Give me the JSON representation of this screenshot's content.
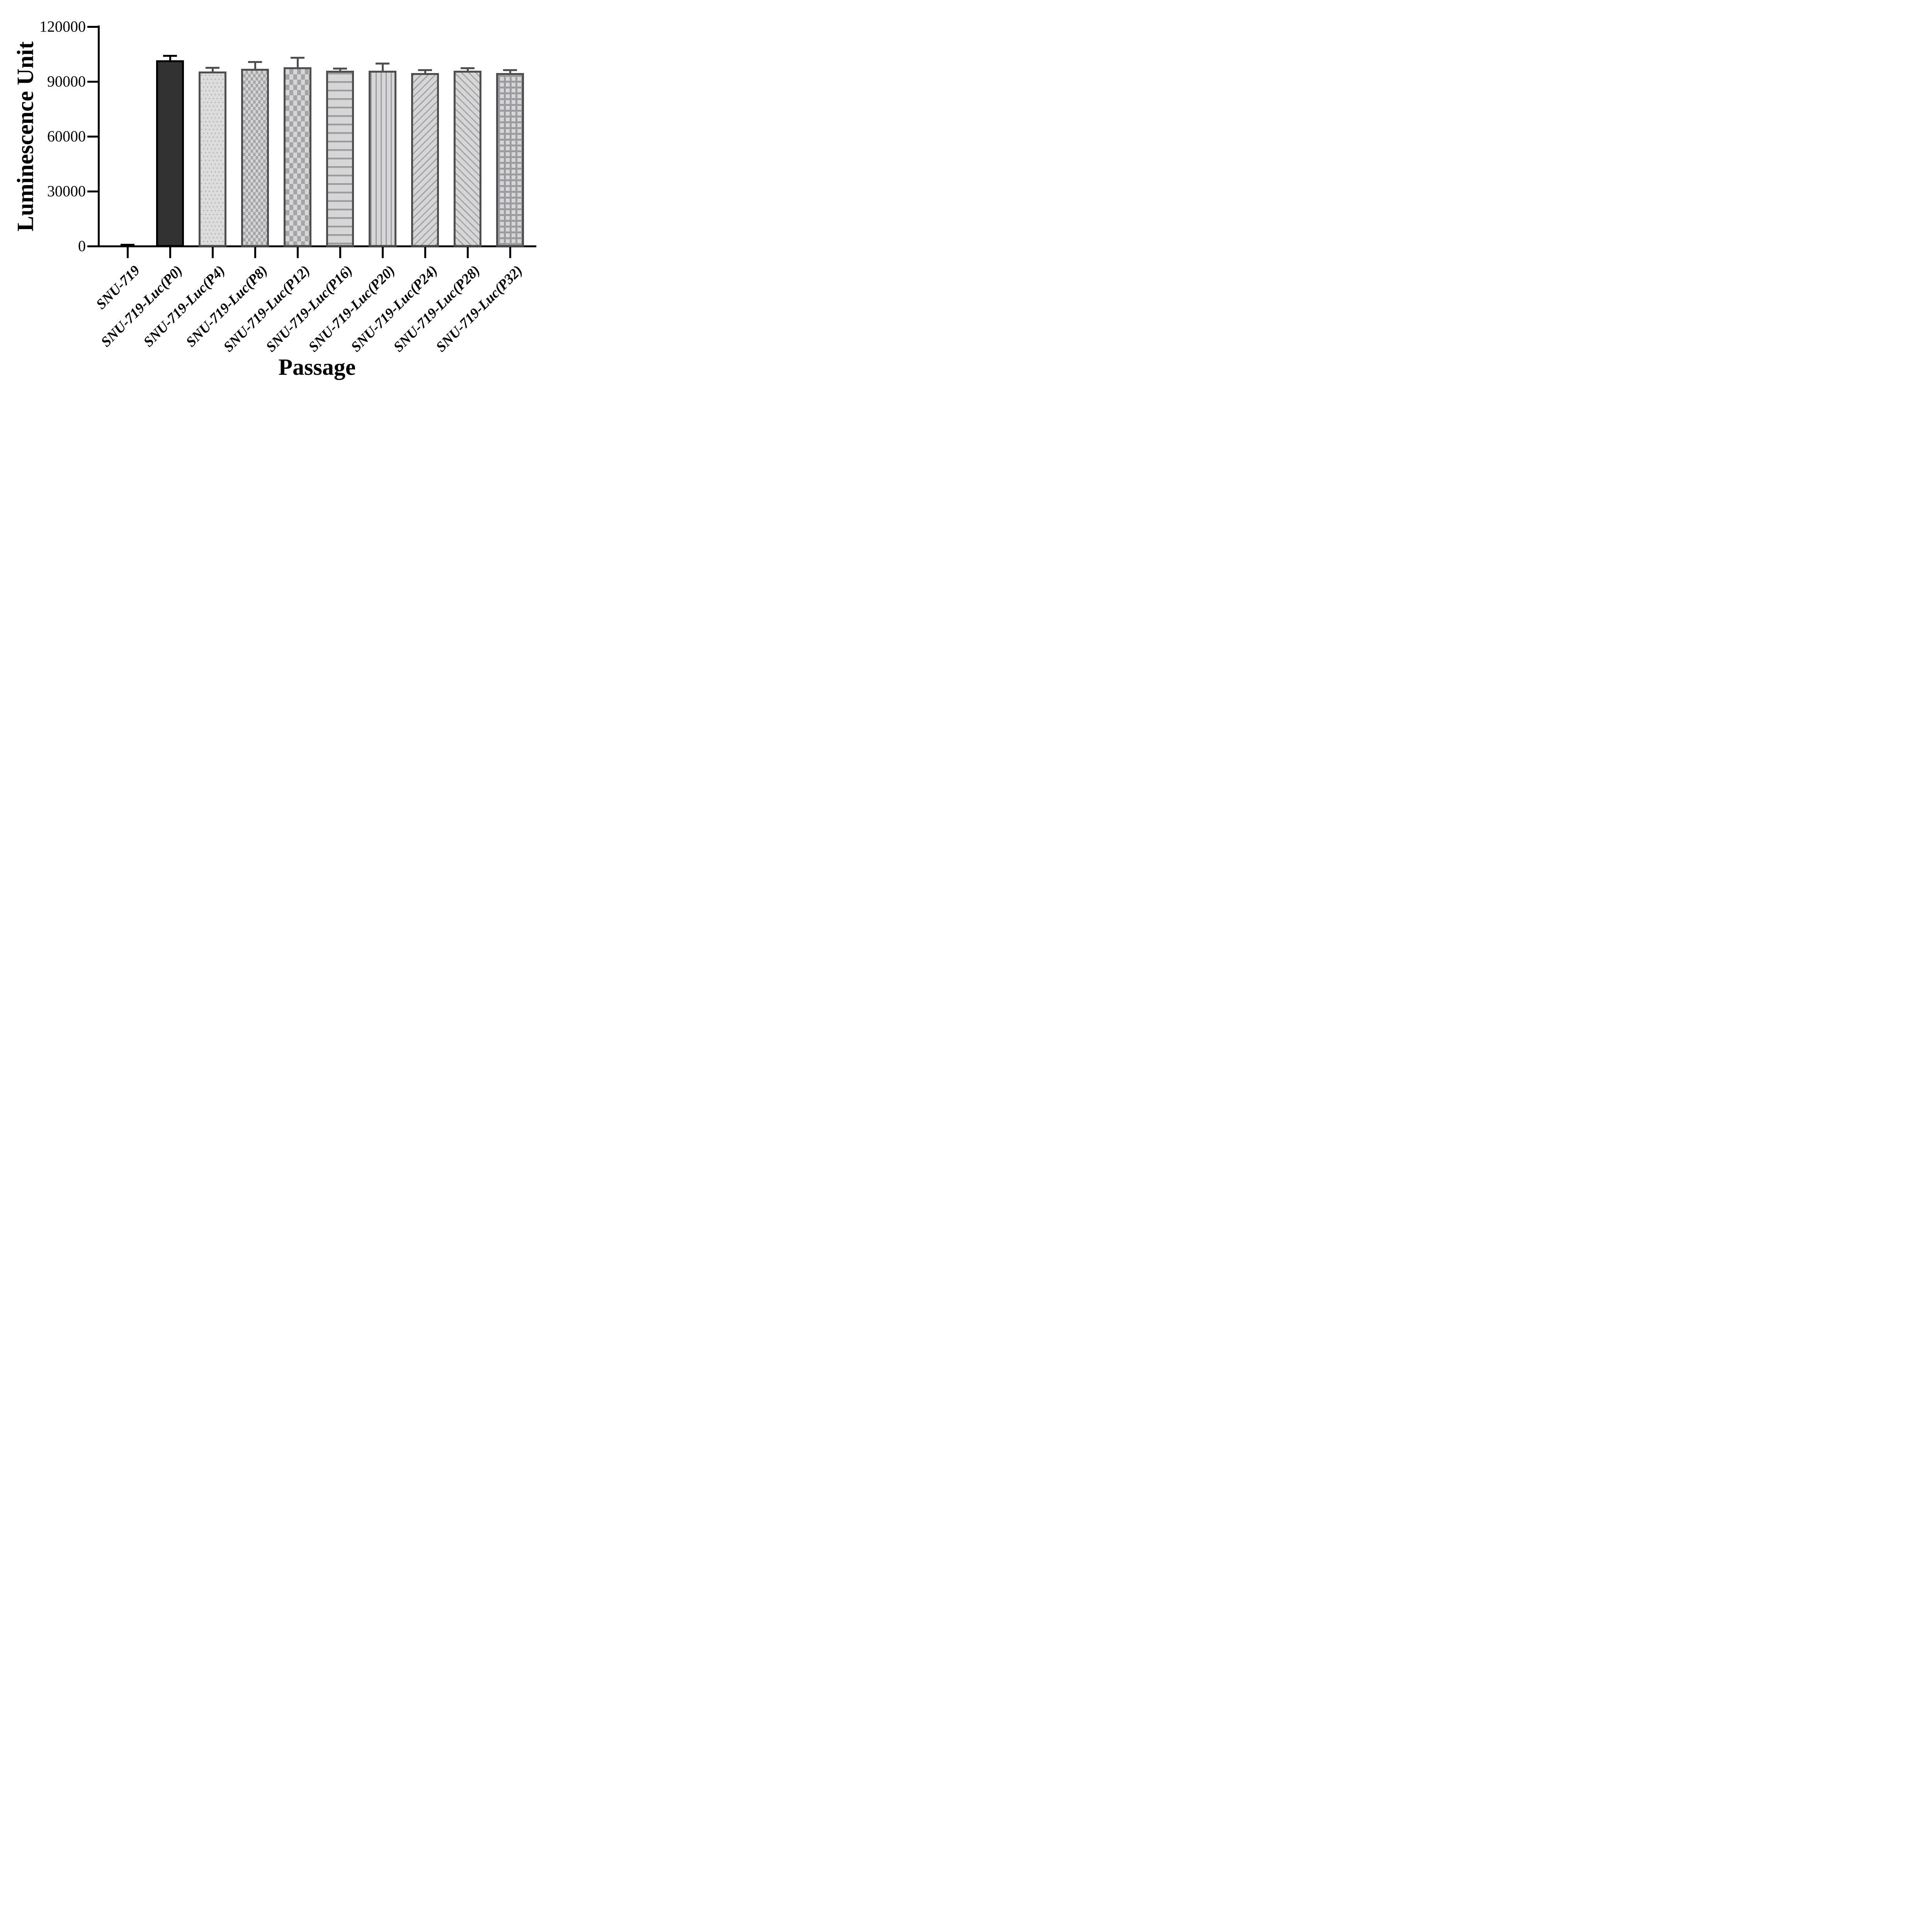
{
  "chart_data": {
    "type": "bar",
    "title": "",
    "xlabel": "Passage",
    "ylabel": "Luminescence Unit",
    "ylim": [
      0,
      120000
    ],
    "yticks": [
      0,
      30000,
      60000,
      90000,
      120000
    ],
    "grid": false,
    "legend": false,
    "error_bars": "sd-upper-only",
    "categories": [
      "SNU-719",
      "SNU-719-Luc(P0)",
      "SNU-719-Luc(P4)",
      "SNU-719-Luc(P8)",
      "SNU-719-Luc(P12)",
      "SNU-719-Luc(P16)",
      "SNU-719-Luc(P20)",
      "SNU-719-Luc(P24)",
      "SNU-719-Luc(P28)",
      "SNU-719-Luc(P32)"
    ],
    "values": [
      300,
      101600,
      95500,
      97000,
      97800,
      95900,
      95900,
      94600,
      95900,
      94700
    ],
    "errors": [
      900,
      2900,
      2600,
      4200,
      5800,
      1700,
      4500,
      2200,
      1900,
      2100
    ],
    "bar_patterns": [
      "solid-black",
      "solid-dark",
      "dots",
      "check-small",
      "check-large",
      "h-lines",
      "v-lines",
      "diag-up",
      "diag-down",
      "grid"
    ]
  },
  "colors": {
    "axis": "#000000",
    "dark_bar_fill": "#323232",
    "dark_bar_border": "#000000",
    "pattern_bar_border": "#4f4f4f",
    "pattern_bar_fill": "#d6d6d6",
    "pattern_ink": "#9b9ba0",
    "background": "#ffffff"
  }
}
